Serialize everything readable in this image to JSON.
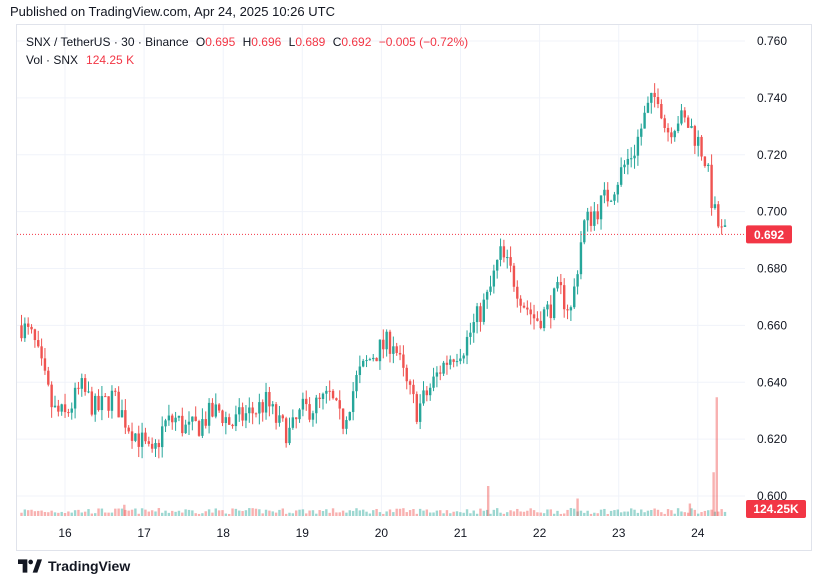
{
  "header": {
    "published": "Published on TradingView.com, Apr 24, 2025 10:26 UTC"
  },
  "legend": {
    "symbol": "SNX / TetherUS · 30 · Binance",
    "o_label": "O",
    "o_value": "0.695",
    "h_label": "H",
    "h_value": "0.696",
    "l_label": "L",
    "l_value": "0.689",
    "c_label": "C",
    "c_value": "0.692",
    "change": "−0.005 (−0.72%)",
    "vol_label": "Vol · SNX",
    "vol_value": "124.25 K"
  },
  "footer": {
    "brand": "TradingView"
  },
  "colors": {
    "up": "#26a69a",
    "down": "#ef5350",
    "price_label": "#f23645",
    "grid": "#f0f3fa",
    "text": "#131722"
  },
  "chart_data": {
    "type": "candlestick",
    "y_axis_ticks": [
      "0.760",
      "0.740",
      "0.720",
      "0.700",
      "0.680",
      "0.660",
      "0.640",
      "0.620",
      "0.600"
    ],
    "ylim": [
      0.598,
      0.764
    ],
    "x_axis_ticks": [
      "16",
      "17",
      "18",
      "19",
      "20",
      "21",
      "22",
      "23",
      "24"
    ],
    "last_price": 0.692,
    "last_price_label": "0.692",
    "last_volume_label": "124.25K",
    "close_path": [
      [
        15.45,
        0.66
      ],
      [
        15.6,
        0.655
      ],
      [
        15.7,
        0.645
      ],
      [
        15.85,
        0.63
      ],
      [
        16.0,
        0.628
      ],
      [
        16.2,
        0.638
      ],
      [
        16.4,
        0.63
      ],
      [
        16.6,
        0.635
      ],
      [
        16.8,
        0.625
      ],
      [
        16.95,
        0.62
      ],
      [
        17.1,
        0.613
      ],
      [
        17.25,
        0.625
      ],
      [
        17.4,
        0.627
      ],
      [
        17.55,
        0.623
      ],
      [
        17.7,
        0.625
      ],
      [
        17.8,
        0.628
      ],
      [
        17.95,
        0.63
      ],
      [
        18.1,
        0.625
      ],
      [
        18.25,
        0.628
      ],
      [
        18.4,
        0.63
      ],
      [
        18.55,
        0.633
      ],
      [
        18.7,
        0.625
      ],
      [
        18.85,
        0.622
      ],
      [
        19.0,
        0.63
      ],
      [
        19.2,
        0.632
      ],
      [
        19.35,
        0.635
      ],
      [
        19.5,
        0.625
      ],
      [
        19.7,
        0.642
      ],
      [
        19.9,
        0.65
      ],
      [
        20.15,
        0.655
      ],
      [
        20.3,
        0.64
      ],
      [
        20.45,
        0.63
      ],
      [
        20.6,
        0.637
      ],
      [
        20.75,
        0.645
      ],
      [
        20.9,
        0.65
      ],
      [
        21.05,
        0.653
      ],
      [
        21.2,
        0.662
      ],
      [
        21.35,
        0.67
      ],
      [
        21.5,
        0.685
      ],
      [
        21.65,
        0.678
      ],
      [
        21.8,
        0.668
      ],
      [
        21.95,
        0.662
      ],
      [
        22.1,
        0.665
      ],
      [
        22.25,
        0.672
      ],
      [
        22.4,
        0.665
      ],
      [
        22.55,
        0.695
      ],
      [
        22.7,
        0.7
      ],
      [
        22.9,
        0.707
      ],
      [
        23.05,
        0.715
      ],
      [
        23.2,
        0.722
      ],
      [
        23.35,
        0.735
      ],
      [
        23.5,
        0.742
      ],
      [
        23.6,
        0.728
      ],
      [
        23.75,
        0.733
      ],
      [
        23.9,
        0.73
      ],
      [
        24.0,
        0.725
      ],
      [
        24.1,
        0.718
      ],
      [
        24.2,
        0.7
      ],
      [
        24.3,
        0.692
      ],
      [
        24.35,
        0.692
      ]
    ],
    "volume_spikes": [
      {
        "x": 24.24,
        "value_fraction": 0.95
      },
      {
        "x": 24.2,
        "value_fraction": 0.35
      },
      {
        "x": 21.35,
        "value_fraction": 0.24
      },
      {
        "x": 22.48,
        "value_fraction": 0.14
      },
      {
        "x": 16.75,
        "value_fraction": 0.09
      },
      {
        "x": 23.9,
        "value_fraction": 0.1
      }
    ]
  }
}
